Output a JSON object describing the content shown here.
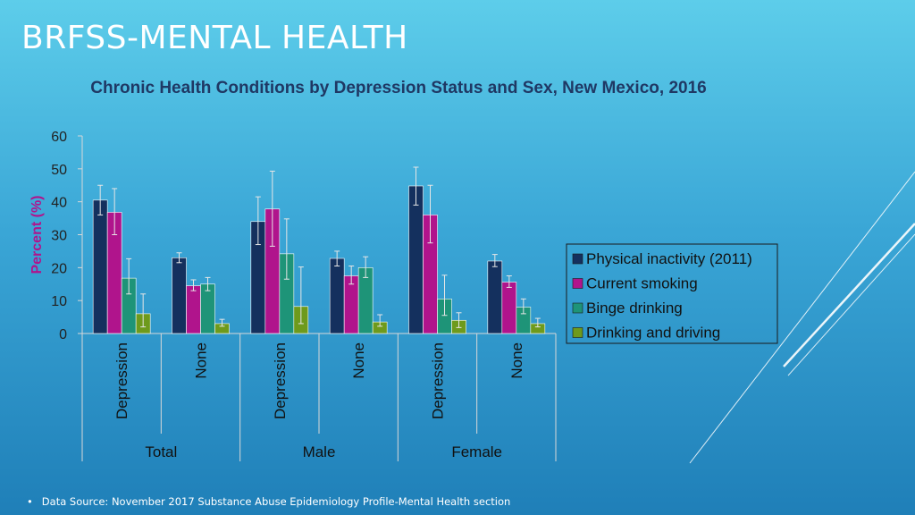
{
  "slide": {
    "title": "BRFSS-MENTAL HEALTH",
    "footnote": "Data Source: November 2017 Substance Abuse Epidemiology Profile-Mental Health section"
  },
  "chart_data": {
    "type": "bar",
    "title": "Chronic Health Conditions by Depression Status and Sex, New Mexico, 2016",
    "ylabel": "Percent (%)",
    "xlabel": "",
    "ylim": [
      0,
      60
    ],
    "yticks": [
      0,
      10,
      20,
      30,
      40,
      50,
      60
    ],
    "groups": [
      "Total",
      "Male",
      "Female"
    ],
    "categories": [
      "Depression",
      "None",
      "Depression",
      "None",
      "Depression",
      "None"
    ],
    "legend_position": "right",
    "error_bars": true,
    "series": [
      {
        "name": "Physical inactivity (2011)",
        "color": "#14305e",
        "values": [
          40.5,
          23,
          34,
          22.8,
          44.8,
          22
        ],
        "err_low": [
          36,
          21.5,
          27,
          20.5,
          39,
          20.3
        ],
        "err_high": [
          45,
          24.5,
          41.5,
          25,
          50.5,
          24
        ]
      },
      {
        "name": "Current smoking",
        "color": "#b0148c",
        "values": [
          36.8,
          14.5,
          37.8,
          17.5,
          36,
          15.6
        ],
        "err_low": [
          30,
          13,
          26.5,
          15,
          27.5,
          14
        ],
        "err_high": [
          44,
          16.3,
          49.3,
          20.5,
          45,
          17.5
        ]
      },
      {
        "name": "Binge drinking",
        "color": "#1e9478",
        "values": [
          16.8,
          15,
          24.2,
          20,
          10.5,
          8
        ],
        "err_low": [
          12,
          13,
          16.5,
          17,
          5.5,
          6
        ],
        "err_high": [
          22.7,
          17,
          34.8,
          23.3,
          17.7,
          10.5
        ]
      },
      {
        "name": "Drinking and driving",
        "color": "#6e9a1c",
        "values": [
          6,
          3,
          8.2,
          3.5,
          4,
          3
        ],
        "err_low": [
          2,
          2.2,
          3,
          2.2,
          1.8,
          2
        ],
        "err_high": [
          12,
          4.3,
          20.2,
          5.7,
          6.3,
          4.6
        ]
      }
    ]
  }
}
